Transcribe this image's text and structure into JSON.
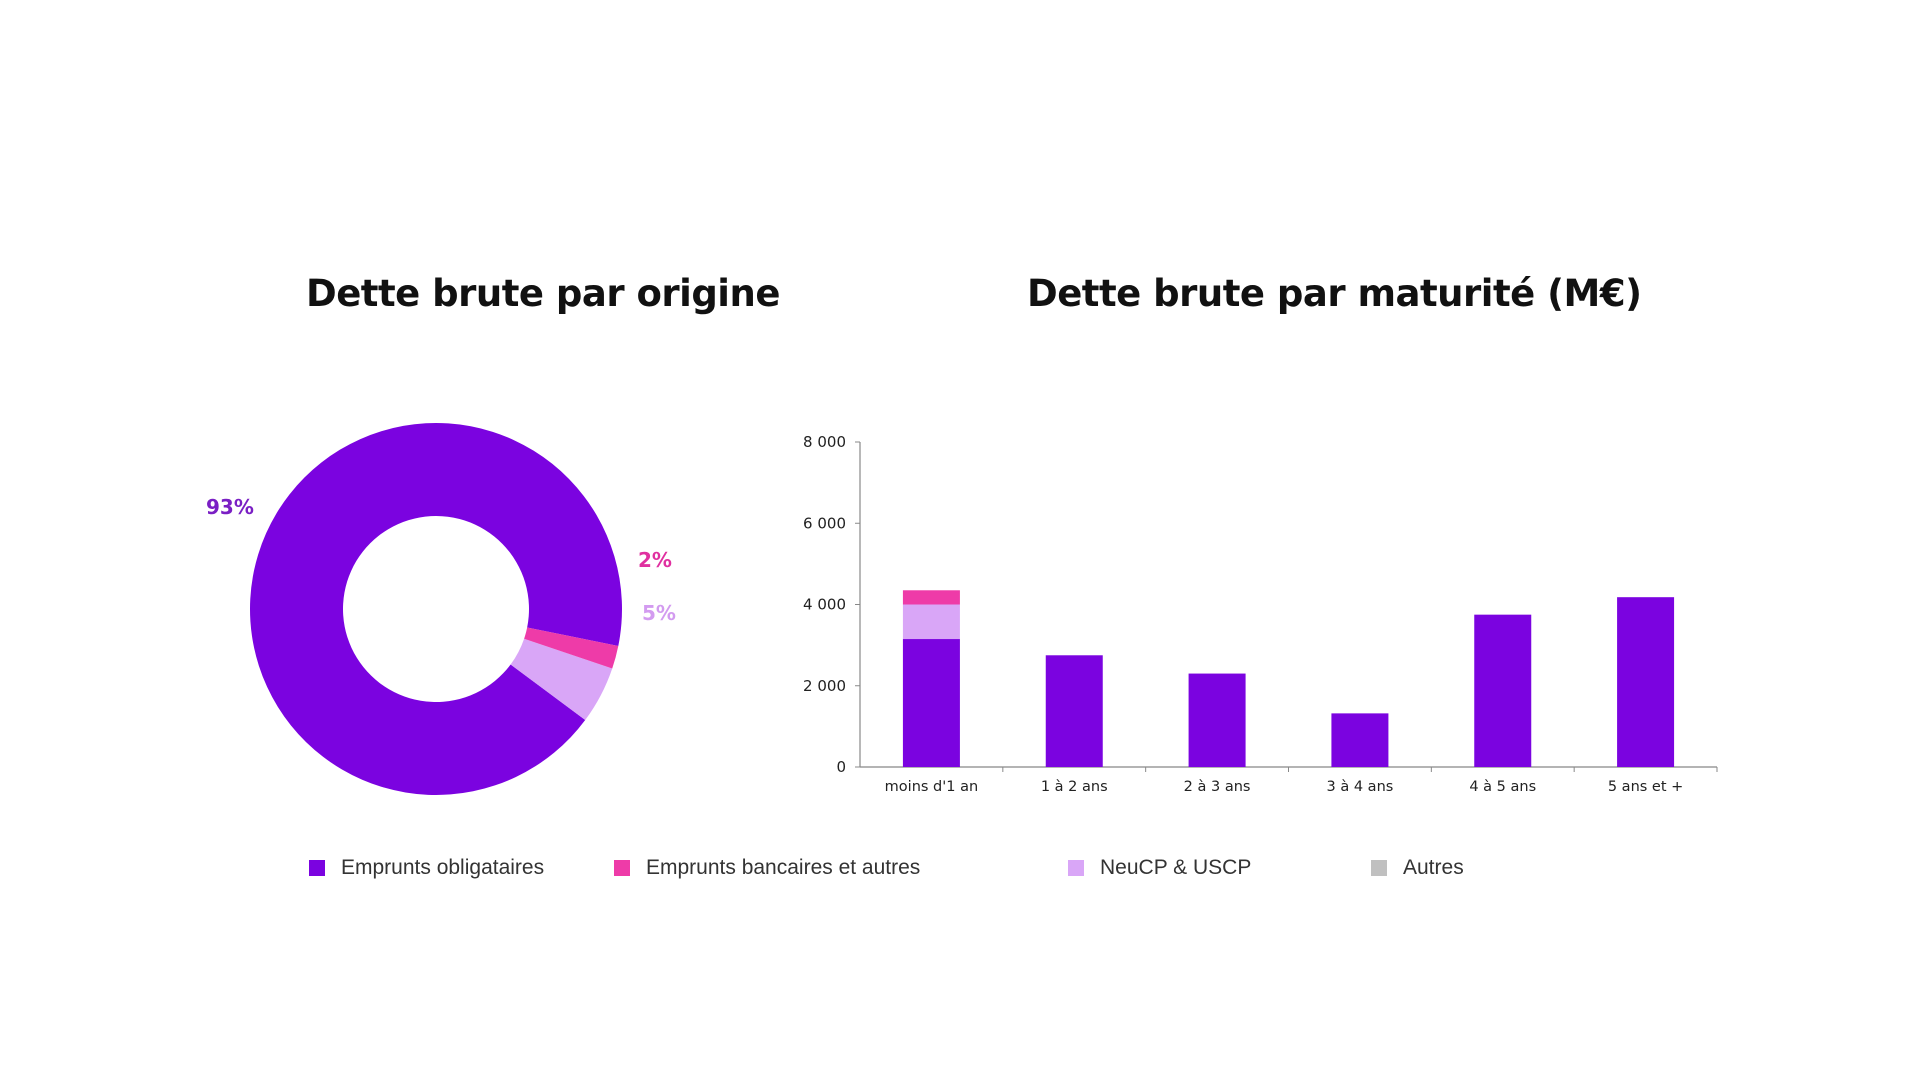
{
  "titles": {
    "left": "Dette brute par origine",
    "right": "Dette brute par maturité (M€)"
  },
  "colors": {
    "emprunts_obligataires": "#7b03e0",
    "emprunts_bancaires": "#ee3ba8",
    "neucp_uscp": "#d9a6f7",
    "autres": "#c0c0c0",
    "axis": "#888888",
    "label_93": "#7a1fc4",
    "label_2": "#e030a0",
    "label_5": "#d39bf0"
  },
  "legend": [
    {
      "label": "Emprunts obligataires",
      "color": "#7b03e0"
    },
    {
      "label": "Emprunts bancaires et autres",
      "color": "#ee3ba8"
    },
    {
      "label": "NeuCP & USCP",
      "color": "#d9a6f7"
    },
    {
      "label": "Autres",
      "color": "#c0c0c0"
    }
  ],
  "chart_data": [
    {
      "type": "pie",
      "title": "Dette brute par origine",
      "donut": true,
      "slices": [
        {
          "name": "Emprunts obligataires",
          "value": 93,
          "label": "93%",
          "color": "#7b03e0"
        },
        {
          "name": "Emprunts bancaires et autres",
          "value": 2,
          "label": "2%",
          "color": "#ee3ba8"
        },
        {
          "name": "NeuCP & USCP",
          "value": 5,
          "label": "5%",
          "color": "#d9a6f7"
        }
      ]
    },
    {
      "type": "bar",
      "stacked": true,
      "title": "Dette brute par maturité (M€)",
      "categories": [
        "moins d'1 an",
        "1 à 2 ans",
        "2 à 3 ans",
        "3 à 4 ans",
        "4 à 5 ans",
        "5 ans et +"
      ],
      "series": [
        {
          "name": "Emprunts obligataires",
          "color": "#7b03e0",
          "values": [
            3150,
            2750,
            2300,
            1320,
            3750,
            4180
          ]
        },
        {
          "name": "NeuCP & USCP",
          "color": "#d9a6f7",
          "values": [
            850,
            0,
            0,
            0,
            0,
            0
          ]
        },
        {
          "name": "Emprunts bancaires et autres",
          "color": "#ee3ba8",
          "values": [
            350,
            0,
            0,
            0,
            0,
            0
          ]
        }
      ],
      "ylim": [
        0,
        8000
      ],
      "yticks": [
        0,
        2000,
        4000,
        6000,
        8000
      ],
      "ytick_labels": [
        "0",
        "2 000",
        "4 000",
        "6 000",
        "8 000"
      ],
      "grid": false
    }
  ]
}
